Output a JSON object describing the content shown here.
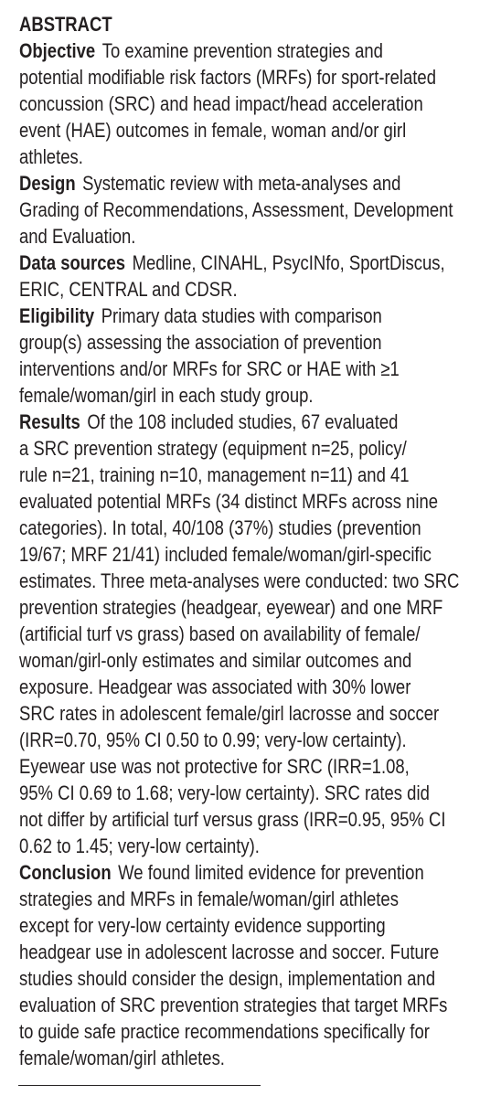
{
  "abstract": {
    "title": "ABSTRACT",
    "sections": [
      {
        "heading": "Objective",
        "lines": [
          "To examine prevention strategies and",
          "potential modifiable risk factors (MRFs) for sport-related",
          "concussion (SRC) and head impact/head acceleration",
          "event (HAE) outcomes in female, woman and/or girl",
          "athletes."
        ]
      },
      {
        "heading": "Design",
        "lines": [
          "Systematic review with meta-analyses and",
          "Grading of Recommendations, Assessment, Development",
          "and Evaluation."
        ]
      },
      {
        "heading": "Data sources",
        "lines": [
          "Medline, CINAHL, PsycINfo, SportDiscus,",
          "ERIC, CENTRAL and CDSR."
        ]
      },
      {
        "heading": "Eligibility",
        "lines": [
          "Primary data studies with comparison",
          "group(s) assessing the association of prevention",
          "interventions and/or MRFs for SRC or HAE with ≥1",
          "female/woman/girl in each study group."
        ]
      },
      {
        "heading": "Results",
        "lines": [
          "Of the 108 included studies, 67 evaluated",
          "a SRC prevention strategy (equipment n=25, policy/",
          "rule n=21, training n=10, management n=11) and 41",
          "evaluated potential MRFs (34 distinct MRFs across nine",
          "categories). In total, 40/108 (37%) studies (prevention",
          "19/67; MRF 21/41) included female/woman/girl-specific",
          "estimates. Three meta-analyses were conducted: two SRC",
          "prevention strategies (headgear, eyewear) and one MRF",
          "(artificial turf vs grass) based on availability of female/",
          "woman/girl-only estimates and similar outcomes and",
          "exposure. Headgear was associated with 30% lower",
          "SRC rates in adolescent female/girl lacrosse and soccer",
          "(IRR=0.70, 95% CI 0.50 to 0.99; very-low certainty).",
          "Eyewear use was not protective for SRC (IRR=1.08,",
          "95% CI 0.69 to 1.68; very-low certainty). SRC rates did",
          "not differ by artificial turf versus grass (IRR=0.95, 95% CI",
          "0.62 to 1.45; very-low certainty)."
        ]
      },
      {
        "heading": "Conclusion",
        "lines": [
          "We found limited evidence for prevention",
          "strategies and MRFs in female/woman/girl athletes",
          "except for very-low certainty evidence supporting",
          "headgear use in adolescent lacrosse and soccer. Future",
          "studies should consider the design, implementation and",
          "evaluation of SRC prevention strategies that target MRFs",
          "to guide safe practice recommendations specifically for",
          "female/woman/girl athletes."
        ]
      }
    ]
  }
}
